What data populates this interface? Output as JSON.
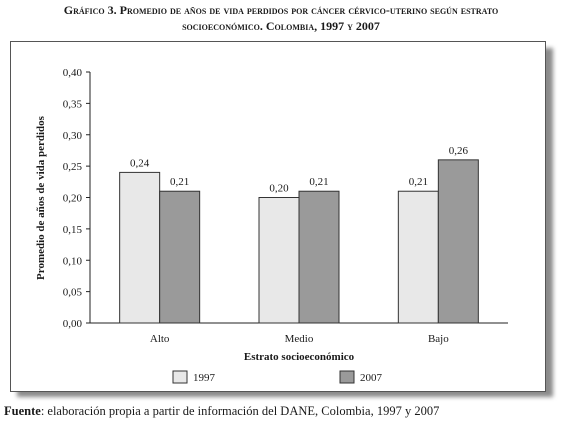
{
  "title": {
    "line1": "Gráfico 3. Promedio de años de vida perdidos por cáncer cérvico-uterino según estrato",
    "line2": "socioeconómico. Colombia, 1997 y 2007"
  },
  "source": {
    "label": "Fuente",
    "text": ": elaboración propia a partir de información del DANE, Colombia, 1997 y 2007"
  },
  "colors": {
    "s1997": "#e8e8e8",
    "s2007": "#9a9a9a",
    "stroke": "#333333"
  },
  "chart_data": {
    "type": "bar",
    "categories": [
      "Alto",
      "Medio",
      "Bajo"
    ],
    "series": [
      {
        "name": "1997",
        "values": [
          0.24,
          0.2,
          0.21
        ],
        "labels": [
          "0,24",
          "0,20",
          "0,21"
        ]
      },
      {
        "name": "2007",
        "values": [
          0.21,
          0.21,
          0.26
        ],
        "labels": [
          "0,21",
          "0,21",
          "0,26"
        ]
      }
    ],
    "ylim": [
      0,
      0.4
    ],
    "yticks": [
      "0,00",
      "0,05",
      "0,10",
      "0,15",
      "0,20",
      "0,25",
      "0,30",
      "0,35",
      "0,40"
    ],
    "xlabel": "Estrato socioeconómico",
    "ylabel": "Promedio de años de vida perdidos",
    "legend_position": "bottom"
  }
}
